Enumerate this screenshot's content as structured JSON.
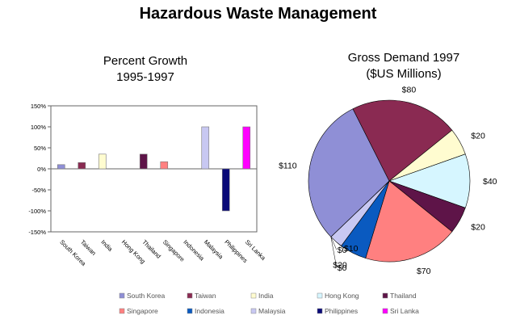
{
  "page_title": "Hazardous Waste Management",
  "colors": {
    "South Korea": "#8f8fd6",
    "Taiwan": "#8a2a52",
    "India": "#fffcd0",
    "Hong Kong": "#d6f6ff",
    "Thailand": "#5e1448",
    "Singapore": "#ff8080",
    "Indonesia": "#0a5ac0",
    "Malaysia": "#c8c8f2",
    "Philippines": "#0a0a78",
    "Sri Lanka": "#ff00ff"
  },
  "chart_data": [
    {
      "type": "bar",
      "title_lines": [
        "Percent Growth",
        "1995-1997"
      ],
      "categories": [
        "South Korea",
        "Taiwan",
        "India",
        "Hong Kong",
        "Thailand",
        "Singapore",
        "Indonesia",
        "Malaysia",
        "Philippines",
        "Sri Lanka"
      ],
      "values": [
        10,
        15,
        35,
        0,
        35,
        17,
        0,
        100,
        -100,
        100
      ],
      "ylim": [
        -150,
        150
      ],
      "ytick_values": [
        150,
        100,
        50,
        0,
        -50,
        -100,
        -150
      ],
      "ytick_labels": [
        "150%",
        "100%",
        "50%",
        "0%",
        "-50%",
        "-100%",
        "-150%"
      ],
      "xlabel": "",
      "ylabel": "",
      "grid": false
    },
    {
      "type": "pie",
      "title_lines": [
        "Gross Demand 1997",
        "($US Millions)"
      ],
      "slices": [
        {
          "name": "Hong Kong",
          "value": 40,
          "label": "$40"
        },
        {
          "name": "Thailand",
          "value": 20,
          "label": "$20"
        },
        {
          "name": "Singapore",
          "value": 70,
          "label": "$70"
        },
        {
          "name": "Indonesia",
          "value": 20,
          "label": "$20"
        },
        {
          "name": "Malaysia",
          "value": 10,
          "label": "$10"
        },
        {
          "name": "Philippines",
          "value": 0,
          "label": "$0"
        },
        {
          "name": "Sri Lanka",
          "value": 0,
          "label": "$0"
        },
        {
          "name": "South Korea",
          "value": 110,
          "label": "$110"
        },
        {
          "name": "Taiwan",
          "value": 80,
          "label": "$80"
        },
        {
          "name": "India",
          "value": 20,
          "label": "$20"
        }
      ]
    }
  ],
  "legend": {
    "placement": "bottom",
    "entries": [
      "South Korea",
      "Taiwan",
      "India",
      "Hong Kong",
      "Thailand",
      "Singapore",
      "Indonesia",
      "Malaysia",
      "Philippines",
      "Sri Lanka"
    ]
  }
}
